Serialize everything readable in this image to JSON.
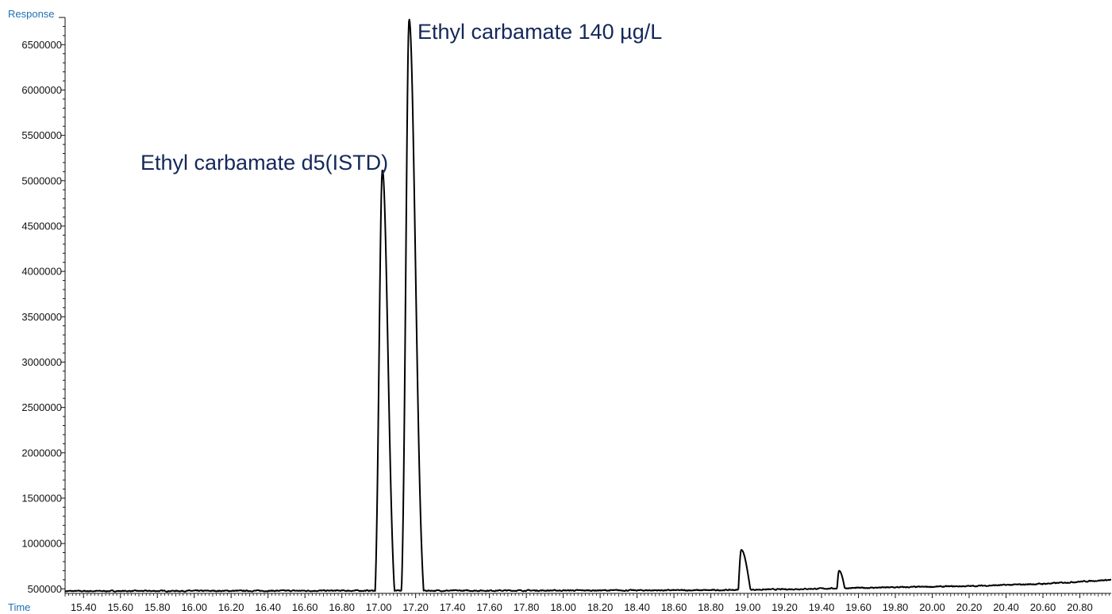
{
  "chart_data": {
    "type": "line",
    "xlabel": "Time",
    "ylabel": "Response",
    "xlim": [
      15.3,
      20.97
    ],
    "ylim": [
      450000,
      6800000
    ],
    "grid": false,
    "x_ticks": [
      "15.40",
      "15.60",
      "15.80",
      "16.00",
      "16.20",
      "16.40",
      "16.60",
      "16.80",
      "17.00",
      "17.20",
      "17.40",
      "17.60",
      "17.80",
      "18.00",
      "18.20",
      "18.40",
      "18.60",
      "18.80",
      "19.00",
      "19.20",
      "19.40",
      "19.60",
      "19.80",
      "20.00",
      "20.20",
      "20.40",
      "20.60",
      "20.80"
    ],
    "y_ticks": [
      "500000",
      "1000000",
      "1500000",
      "2000000",
      "2500000",
      "3000000",
      "3500000",
      "4000000",
      "4500000",
      "5000000",
      "5500000",
      "6000000",
      "6500000"
    ],
    "series": [
      {
        "baseline": [
          [
            15.3,
            475000
          ],
          [
            16.9,
            480000
          ],
          [
            17.4,
            480000
          ],
          [
            18.8,
            485000
          ],
          [
            19.2,
            495000
          ],
          [
            19.6,
            510000
          ],
          [
            20.2,
            530000
          ],
          [
            20.6,
            555000
          ],
          [
            20.97,
            600000
          ]
        ],
        "peaks": [
          {
            "rt": 17.02,
            "height": 5120000,
            "sigma": 0.018,
            "tail": 0.012
          },
          {
            "rt": 17.165,
            "height": 6780000,
            "sigma": 0.018,
            "tail": 0.016
          },
          {
            "rt": 18.965,
            "height": 930000,
            "sigma": 0.014,
            "tail": 0.03
          },
          {
            "rt": 19.495,
            "height": 700000,
            "sigma": 0.013,
            "tail": 0.025
          }
        ]
      }
    ],
    "annotations": [
      {
        "text": "Ethyl carbamate d5(ISTD)",
        "x": 17.02,
        "y": 5120000
      },
      {
        "text": "Ethyl carbamate 140 µg/L",
        "x": 17.165,
        "y": 6780000
      }
    ]
  }
}
